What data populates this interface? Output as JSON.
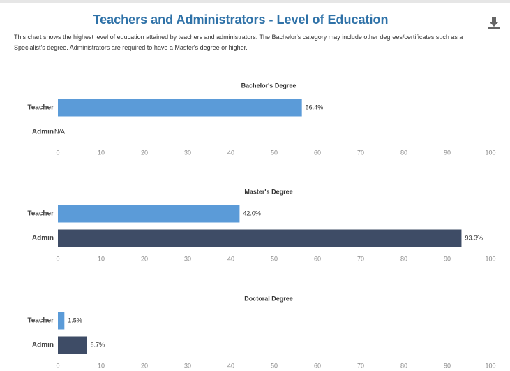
{
  "header": {
    "title": "Teachers and Administrators - Level of Education",
    "description": "This chart shows the highest level of education attained by teachers and administrators. The Bachelor's category may include other degrees/certificates such as a Specialist's degree. Administrators are required to have a Master's degree or higher."
  },
  "chart_data": [
    {
      "type": "bar",
      "orientation": "horizontal",
      "title": "Bachelor's Degree",
      "categories": [
        "Teacher",
        "Admin"
      ],
      "values": [
        56.4,
        null
      ],
      "value_labels": [
        "56.4%",
        "N/A"
      ],
      "colors": [
        "#5b9bd8",
        "#3e4c66"
      ],
      "xlim": [
        0,
        100
      ],
      "xticks": [
        0,
        10,
        20,
        30,
        40,
        50,
        60,
        70,
        80,
        90,
        100
      ]
    },
    {
      "type": "bar",
      "orientation": "horizontal",
      "title": "Master's Degree",
      "categories": [
        "Teacher",
        "Admin"
      ],
      "values": [
        42.0,
        93.3
      ],
      "value_labels": [
        "42.0%",
        "93.3%"
      ],
      "colors": [
        "#5b9bd8",
        "#3e4c66"
      ],
      "xlim": [
        0,
        100
      ],
      "xticks": [
        0,
        10,
        20,
        30,
        40,
        50,
        60,
        70,
        80,
        90,
        100
      ]
    },
    {
      "type": "bar",
      "orientation": "horizontal",
      "title": "Doctoral Degree",
      "categories": [
        "Teacher",
        "Admin"
      ],
      "values": [
        1.5,
        6.7
      ],
      "value_labels": [
        "1.5%",
        "6.7%"
      ],
      "colors": [
        "#5b9bd8",
        "#3e4c66"
      ],
      "xlim": [
        0,
        100
      ],
      "xticks": [
        0,
        10,
        20,
        30,
        40,
        50,
        60,
        70,
        80,
        90,
        100
      ]
    }
  ]
}
